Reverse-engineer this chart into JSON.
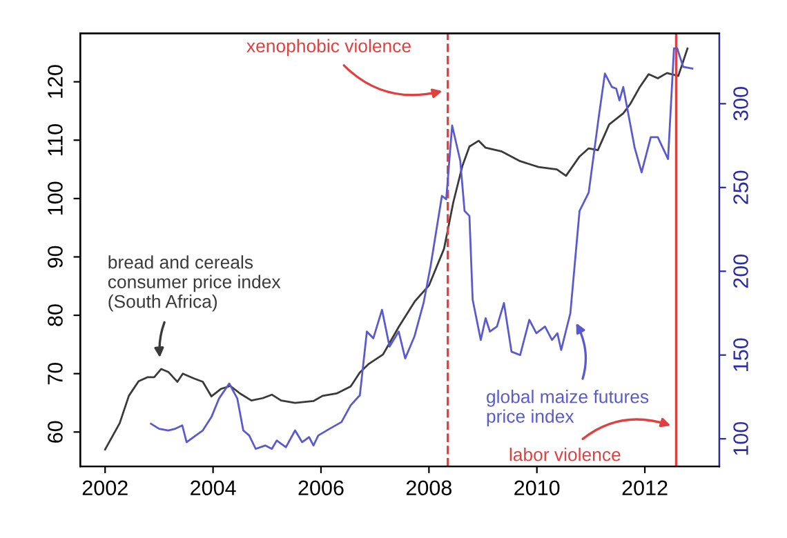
{
  "chart_data": {
    "type": "line",
    "xlim": [
      2001.54,
      2013.38
    ],
    "xticks": [
      2002,
      2004,
      2006,
      2008,
      2010,
      2012
    ],
    "ylim": [
      54.1,
      128.3
    ],
    "yticks": [
      60,
      70,
      80,
      90,
      100,
      110,
      120
    ],
    "y2lim": [
      83.5,
      342
    ],
    "y2ticks": [
      100,
      150,
      200,
      250,
      300
    ],
    "grid": false,
    "legend": false,
    "series": [
      {
        "name": "bread and cereals\nconsumer price index\n(South Africa)",
        "color": "#3a3a3a",
        "x": [
          2002.0,
          2002.27,
          2002.44,
          2002.62,
          2002.79,
          2002.91,
          2003.04,
          2003.17,
          2003.34,
          2003.44,
          2003.64,
          2003.81,
          2003.97,
          2004.15,
          2004.32,
          2004.5,
          2004.71,
          2004.92,
          2005.09,
          2005.26,
          2005.52,
          2005.86,
          2006.03,
          2006.29,
          2006.55,
          2006.72,
          2006.89,
          2007.15,
          2007.44,
          2007.74,
          2008.0,
          2008.28,
          2008.45,
          2008.62,
          2008.75,
          2008.92,
          2009.05,
          2009.34,
          2009.69,
          2010.03,
          2010.37,
          2010.54,
          2010.79,
          2010.96,
          2011.13,
          2011.34,
          2011.6,
          2011.73,
          2011.9,
          2012.07,
          2012.24,
          2012.41,
          2012.62,
          2012.79
        ],
        "values": [
          57.0,
          61.5,
          66.2,
          68.7,
          69.4,
          69.4,
          70.8,
          70.3,
          68.6,
          70.0,
          69.2,
          68.6,
          66.1,
          67.4,
          67.9,
          66.6,
          65.4,
          65.8,
          66.4,
          65.4,
          65.0,
          65.3,
          66.2,
          66.6,
          67.8,
          70.2,
          71.7,
          73.3,
          78.0,
          82.4,
          85.1,
          91.4,
          99.3,
          105.6,
          108.9,
          109.9,
          108.7,
          108.1,
          106.4,
          105.4,
          105.0,
          103.9,
          107.2,
          108.6,
          108.3,
          112.7,
          114.6,
          116.2,
          119.0,
          121.3,
          120.6,
          121.5,
          121.0,
          125.7
        ]
      },
      {
        "name": "global maize futures\nprice index",
        "color": "#5a5ad0",
        "axis": "y2",
        "x": [
          2002.85,
          2003.0,
          2003.17,
          2003.3,
          2003.43,
          2003.51,
          2003.68,
          2003.81,
          2003.97,
          2004.11,
          2004.3,
          2004.45,
          2004.56,
          2004.67,
          2004.79,
          2004.97,
          2005.09,
          2005.18,
          2005.35,
          2005.52,
          2005.65,
          2005.78,
          2005.86,
          2005.95,
          2006.16,
          2006.38,
          2006.55,
          2006.72,
          2006.85,
          2006.97,
          2007.13,
          2007.27,
          2007.44,
          2007.56,
          2007.73,
          2007.9,
          2008.03,
          2008.24,
          2008.32,
          2008.43,
          2008.58,
          2008.66,
          2008.75,
          2008.81,
          2008.96,
          2009.05,
          2009.13,
          2009.26,
          2009.39,
          2009.53,
          2009.69,
          2009.86,
          2009.99,
          2010.15,
          2010.28,
          2010.38,
          2010.45,
          2010.62,
          2010.79,
          2010.96,
          2011.15,
          2011.26,
          2011.39,
          2011.47,
          2011.53,
          2011.6,
          2011.81,
          2011.94,
          2012.11,
          2012.24,
          2012.43,
          2012.54,
          2012.6,
          2012.71,
          2012.88
        ],
        "values": [
          109,
          106,
          105,
          106,
          108,
          98,
          102,
          105,
          113,
          124,
          133,
          124,
          105,
          102,
          94,
          96,
          94,
          99,
          95,
          105,
          98,
          101,
          96,
          102,
          106,
          110,
          120,
          126,
          164,
          160,
          177,
          155,
          164,
          148,
          161,
          181,
          203,
          245,
          243,
          287,
          266,
          236,
          233,
          183,
          159,
          172,
          164,
          167,
          181,
          152,
          150,
          171,
          163,
          167,
          159,
          163,
          153,
          175,
          236,
          247,
          293,
          318,
          310,
          309,
          302,
          310,
          274,
          259,
          280,
          280,
          267,
          333,
          333,
          322,
          321
        ]
      }
    ],
    "ref_lines": [
      {
        "axis": "x",
        "value": 2008.35,
        "label": "xenophobic violence",
        "color": "#e04040",
        "line_style": "dashed"
      },
      {
        "axis": "x",
        "value": 2012.58,
        "label": "labor violence",
        "color": "#e04040",
        "line_style": "solid"
      }
    ]
  }
}
